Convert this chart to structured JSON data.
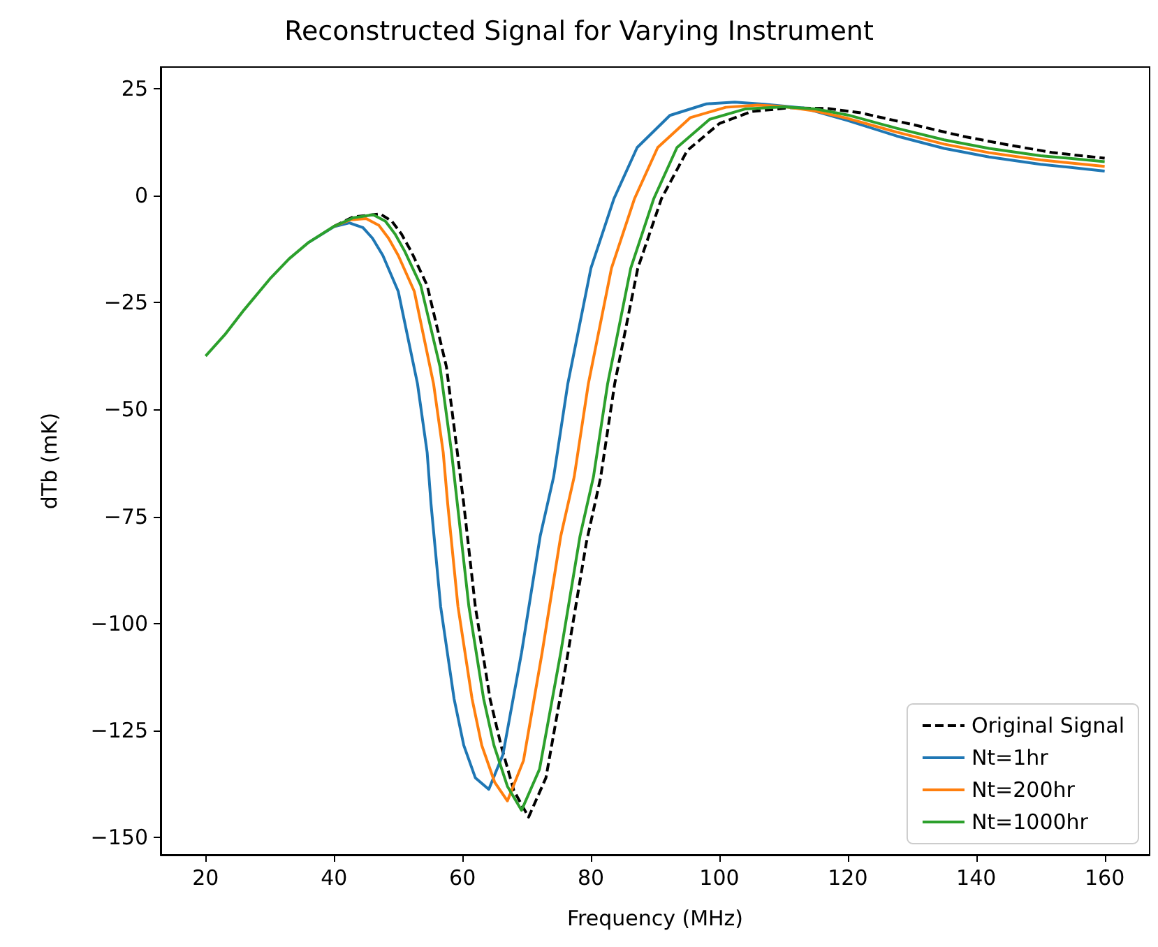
{
  "chart_data": {
    "type": "line",
    "title": "Reconstructed Signal for Varying Instrument",
    "xlabel": "Frequency (MHz)",
    "ylabel": "dTb (mK)",
    "xlim": [
      13,
      167
    ],
    "ylim": [
      -154,
      30
    ],
    "xticks": [
      20,
      40,
      60,
      80,
      100,
      120,
      140,
      160
    ],
    "yticks": [
      {
        "value": -150,
        "label": "−150"
      },
      {
        "value": -125,
        "label": "−125"
      },
      {
        "value": -100,
        "label": "−100"
      },
      {
        "value": -75,
        "label": "−75"
      },
      {
        "value": -50,
        "label": "−50"
      },
      {
        "value": -25,
        "label": "−25"
      },
      0,
      25
    ],
    "grid": false,
    "legend": "bottom right",
    "marker": "none",
    "series": [
      {
        "name": "Original Signal",
        "color": "#000000",
        "line_style": "dashed",
        "x": [
          40,
          43,
          47.2,
          49,
          50.5,
          52,
          54.5,
          57.5,
          59.2,
          60.2,
          62,
          64.3,
          66,
          68,
          70.3,
          73,
          76.3,
          79.3,
          81.5,
          83.7,
          87.3,
          91,
          95,
          100,
          105,
          111,
          117,
          122,
          130,
          138,
          145,
          152,
          160
        ],
        "values": [
          -7.2,
          -5,
          -4.3,
          -6,
          -9,
          -13,
          -21,
          -40,
          -60,
          -72,
          -96,
          -117.6,
          -128.4,
          -139,
          -145.2,
          -136,
          -108,
          -81,
          -66,
          -44,
          -17,
          -0.7,
          10.5,
          16.8,
          19.6,
          20.5,
          20.3,
          19.3,
          16.6,
          13.8,
          11.8,
          10,
          8.7
        ]
      },
      {
        "name": "Nt=1hr",
        "color": "#1f77b4",
        "line_style": "solid",
        "x": [
          36,
          40,
          42.4,
          44.5,
          46,
          47.6,
          50,
          53,
          54.5,
          55.1,
          56.6,
          58.7,
          60.2,
          62,
          64.1,
          66.3,
          69.2,
          72.1,
          74.2,
          76.4,
          80,
          83.6,
          87.2,
          92.3,
          98,
          102.4,
          107,
          113.2,
          120,
          127.6,
          135,
          142,
          150,
          160
        ],
        "values": [
          -11,
          -7.3,
          -6.4,
          -7.5,
          -10,
          -14,
          -22.4,
          -44,
          -60,
          -72,
          -96,
          -117.6,
          -128.4,
          -136,
          -138.7,
          -130.6,
          -106.8,
          -79.6,
          -65.7,
          -44,
          -17,
          -0.7,
          11.2,
          18.7,
          21.4,
          21.8,
          21.3,
          20.4,
          17.5,
          13.9,
          11,
          9,
          7.3,
          5.7
        ]
      },
      {
        "name": "Nt=200hr",
        "color": "#ff7f0e",
        "line_style": "solid",
        "x": [
          40,
          42.5,
          45,
          47,
          48.5,
          50,
          52.5,
          55.5,
          57,
          57.7,
          59.3,
          61.5,
          63,
          65,
          67,
          69.5,
          72.4,
          75.3,
          77.4,
          79.6,
          83.2,
          86.8,
          90.4,
          95.5,
          101,
          106,
          110,
          115,
          120,
          127.6,
          135,
          142,
          150,
          160
        ],
        "values": [
          -7.2,
          -5.7,
          -5.4,
          -7,
          -10,
          -14,
          -22.4,
          -44,
          -60,
          -72,
          -96,
          -117.6,
          -128.4,
          -137,
          -141.4,
          -132,
          -106.8,
          -79.6,
          -65.7,
          -44,
          -17,
          -0.7,
          11.2,
          18.2,
          20.6,
          21.1,
          20.8,
          19.7,
          18,
          14.8,
          12,
          10,
          8.3,
          6.8
        ]
      },
      {
        "name": "Nt=1000hr",
        "color": "#2ca02c",
        "line_style": "solid",
        "x": [
          20,
          23,
          26,
          30,
          33,
          36,
          40,
          43,
          46.1,
          48,
          49.5,
          51,
          53.5,
          56.5,
          58.3,
          59.2,
          61,
          63.3,
          64.9,
          67,
          69.2,
          72,
          75.3,
          78.3,
          80.4,
          82.6,
          86.2,
          89.8,
          93.4,
          98.5,
          104,
          110,
          115,
          120,
          127.6,
          135,
          142,
          150,
          160
        ],
        "values": [
          -37.5,
          -32.5,
          -26.7,
          -19.5,
          -14.8,
          -11,
          -7.2,
          -5.2,
          -4.5,
          -6,
          -9,
          -13,
          -21,
          -40,
          -60,
          -72,
          -96,
          -117.6,
          -128.4,
          -138,
          -143.6,
          -134,
          -106.8,
          -79.6,
          -65.7,
          -44,
          -17,
          -0.7,
          11.2,
          17.8,
          20.2,
          20.7,
          20.2,
          18.8,
          15.7,
          13,
          11,
          9.3,
          7.9
        ]
      }
    ]
  }
}
